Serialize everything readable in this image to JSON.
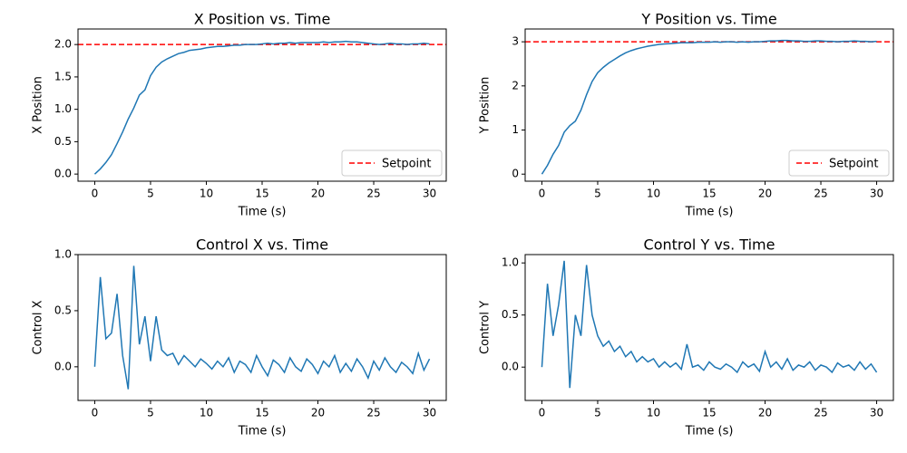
{
  "chart_data": [
    {
      "type": "line",
      "title": "X Position vs. Time",
      "xlabel": "Time (s)",
      "ylabel": "X Position",
      "x": [
        0,
        0.5,
        1,
        1.5,
        2,
        2.5,
        3,
        3.5,
        4,
        4.5,
        5,
        5.5,
        6,
        6.5,
        7,
        7.5,
        8,
        8.5,
        9,
        9.5,
        10,
        10.5,
        11,
        11.5,
        12,
        12.5,
        13,
        13.5,
        14,
        14.5,
        15,
        15.5,
        16,
        16.5,
        17,
        17.5,
        18,
        18.5,
        19,
        19.5,
        20,
        20.5,
        21,
        21.5,
        22,
        22.5,
        23,
        23.5,
        24,
        24.5,
        25,
        25.5,
        26,
        26.5,
        27,
        27.5,
        28,
        28.5,
        29,
        29.5,
        30
      ],
      "values": [
        0,
        0.08,
        0.18,
        0.3,
        0.47,
        0.65,
        0.85,
        1.02,
        1.22,
        1.3,
        1.52,
        1.65,
        1.73,
        1.78,
        1.82,
        1.86,
        1.88,
        1.91,
        1.92,
        1.93,
        1.95,
        1.96,
        1.97,
        1.97,
        1.98,
        1.99,
        1.99,
        2.0,
        2.0,
        2.0,
        2.01,
        2.02,
        2.01,
        2.02,
        2.02,
        2.03,
        2.02,
        2.03,
        2.03,
        2.03,
        2.03,
        2.04,
        2.03,
        2.04,
        2.04,
        2.05,
        2.04,
        2.04,
        2.03,
        2.02,
        2.01,
        2.0,
        2.01,
        2.02,
        2.01,
        2.01,
        2.0,
        2.01,
        2.01,
        2.02,
        2.01
      ],
      "color": "#1f77b4",
      "hline": {
        "value": 2,
        "label": "Setpoint",
        "color": "#ff0000"
      },
      "legend": "lower right",
      "xlim": [
        -1.5,
        31.5
      ],
      "xticks": [
        0,
        5,
        10,
        15,
        20,
        25,
        30
      ],
      "ylim": [
        -0.11,
        2.24
      ],
      "yticks": [
        {
          "value": 0,
          "label": "0.0"
        },
        {
          "value": 0.5,
          "label": "0.5"
        },
        {
          "value": 1,
          "label": "1.0"
        },
        {
          "value": 1.5,
          "label": "1.5"
        },
        {
          "value": 2,
          "label": "2.0"
        }
      ]
    },
    {
      "type": "line",
      "title": "Y Position vs. Time",
      "xlabel": "Time (s)",
      "ylabel": "Y Position",
      "x": [
        0,
        0.5,
        1,
        1.5,
        2,
        2.5,
        3,
        3.5,
        4,
        4.5,
        5,
        5.5,
        6,
        6.5,
        7,
        7.5,
        8,
        8.5,
        9,
        9.5,
        10,
        10.5,
        11,
        11.5,
        12,
        12.5,
        13,
        13.5,
        14,
        14.5,
        15,
        15.5,
        16,
        16.5,
        17,
        17.5,
        18,
        18.5,
        19,
        19.5,
        20,
        20.5,
        21,
        21.5,
        22,
        22.5,
        23,
        23.5,
        24,
        24.5,
        25,
        25.5,
        26,
        26.5,
        27,
        27.5,
        28,
        28.5,
        29,
        29.5,
        30
      ],
      "values": [
        0,
        0.2,
        0.45,
        0.65,
        0.95,
        1.1,
        1.2,
        1.45,
        1.8,
        2.1,
        2.3,
        2.42,
        2.52,
        2.6,
        2.68,
        2.75,
        2.8,
        2.84,
        2.87,
        2.9,
        2.92,
        2.94,
        2.95,
        2.96,
        2.97,
        2.98,
        2.98,
        2.98,
        2.99,
        2.99,
        2.99,
        3.0,
        2.99,
        3.0,
        3.0,
        2.99,
        3.0,
        2.99,
        3.0,
        3.0,
        3.01,
        3.02,
        3.02,
        3.03,
        3.03,
        3.02,
        3.02,
        3.01,
        3.01,
        3.02,
        3.02,
        3.01,
        3.01,
        3.0,
        3.01,
        3.01,
        3.02,
        3.01,
        3.01,
        3.0,
        3.01
      ],
      "color": "#1f77b4",
      "hline": {
        "value": 3,
        "label": "Setpoint",
        "color": "#ff0000"
      },
      "legend": "lower right",
      "xlim": [
        -1.5,
        31.5
      ],
      "xticks": [
        0,
        5,
        10,
        15,
        20,
        25,
        30
      ],
      "ylim": [
        -0.16,
        3.29
      ],
      "yticks": [
        0,
        1,
        2,
        3
      ]
    },
    {
      "type": "line",
      "title": "Control X vs. Time",
      "xlabel": "Time (s)",
      "ylabel": "Control X",
      "x": [
        0,
        0.5,
        1,
        1.5,
        2,
        2.5,
        3,
        3.5,
        4,
        4.5,
        5,
        5.5,
        6,
        6.5,
        7,
        7.5,
        8,
        8.5,
        9,
        9.5,
        10,
        10.5,
        11,
        11.5,
        12,
        12.5,
        13,
        13.5,
        14,
        14.5,
        15,
        15.5,
        16,
        16.5,
        17,
        17.5,
        18,
        18.5,
        19,
        19.5,
        20,
        20.5,
        21,
        21.5,
        22,
        22.5,
        23,
        23.5,
        24,
        24.5,
        25,
        25.5,
        26,
        26.5,
        27,
        27.5,
        28,
        28.5,
        29,
        29.5,
        30
      ],
      "values": [
        0,
        0.8,
        0.25,
        0.3,
        0.65,
        0.1,
        -0.2,
        0.9,
        0.2,
        0.45,
        0.05,
        0.45,
        0.15,
        0.1,
        0.12,
        0.02,
        0.1,
        0.05,
        0.0,
        0.07,
        0.03,
        -0.02,
        0.05,
        0.0,
        0.08,
        -0.05,
        0.05,
        0.02,
        -0.05,
        0.1,
        0.0,
        -0.08,
        0.06,
        0.02,
        -0.05,
        0.08,
        0.0,
        -0.04,
        0.07,
        0.02,
        -0.06,
        0.05,
        0.0,
        0.1,
        -0.05,
        0.03,
        -0.04,
        0.07,
        0.0,
        -0.1,
        0.05,
        -0.03,
        0.08,
        0.0,
        -0.05,
        0.04,
        0.0,
        -0.06,
        0.12,
        -0.03,
        0.07
      ],
      "color": "#1f77b4",
      "xlim": [
        -1.5,
        31.5
      ],
      "xticks": [
        0,
        5,
        10,
        15,
        20,
        25,
        30
      ],
      "ylim": [
        -0.3,
        1.0
      ],
      "yticks": [
        {
          "value": 0,
          "label": "0.0"
        },
        {
          "value": 0.5,
          "label": "0.5"
        },
        {
          "value": 1,
          "label": "1.0"
        }
      ]
    },
    {
      "type": "line",
      "title": "Control Y vs. Time",
      "xlabel": "Time (s)",
      "ylabel": "Control Y",
      "x": [
        0,
        0.5,
        1,
        1.5,
        2,
        2.5,
        3,
        3.5,
        4,
        4.5,
        5,
        5.5,
        6,
        6.5,
        7,
        7.5,
        8,
        8.5,
        9,
        9.5,
        10,
        10.5,
        11,
        11.5,
        12,
        12.5,
        13,
        13.5,
        14,
        14.5,
        15,
        15.5,
        16,
        16.5,
        17,
        17.5,
        18,
        18.5,
        19,
        19.5,
        20,
        20.5,
        21,
        21.5,
        22,
        22.5,
        23,
        23.5,
        24,
        24.5,
        25,
        25.5,
        26,
        26.5,
        27,
        27.5,
        28,
        28.5,
        29,
        29.5,
        30
      ],
      "values": [
        0,
        0.8,
        0.3,
        0.6,
        1.02,
        -0.2,
        0.5,
        0.3,
        0.98,
        0.5,
        0.3,
        0.2,
        0.25,
        0.15,
        0.2,
        0.1,
        0.15,
        0.05,
        0.1,
        0.05,
        0.08,
        0.0,
        0.05,
        0.0,
        0.04,
        -0.02,
        0.22,
        0.0,
        0.02,
        -0.03,
        0.05,
        0.0,
        -0.02,
        0.03,
        0.0,
        -0.05,
        0.05,
        0.0,
        0.03,
        -0.04,
        0.15,
        0.0,
        0.05,
        -0.02,
        0.08,
        -0.03,
        0.02,
        0.0,
        0.05,
        -0.03,
        0.02,
        0.0,
        -0.05,
        0.04,
        0.0,
        0.02,
        -0.03,
        0.05,
        -0.02,
        0.03,
        -0.05
      ],
      "color": "#1f77b4",
      "xlim": [
        -1.5,
        31.5
      ],
      "xticks": [
        0,
        5,
        10,
        15,
        20,
        25,
        30
      ],
      "ylim": [
        -0.32,
        1.08
      ],
      "yticks": [
        {
          "value": 0,
          "label": "0.0"
        },
        {
          "value": 0.5,
          "label": "0.5"
        },
        {
          "value": 1,
          "label": "1.0"
        }
      ]
    }
  ]
}
